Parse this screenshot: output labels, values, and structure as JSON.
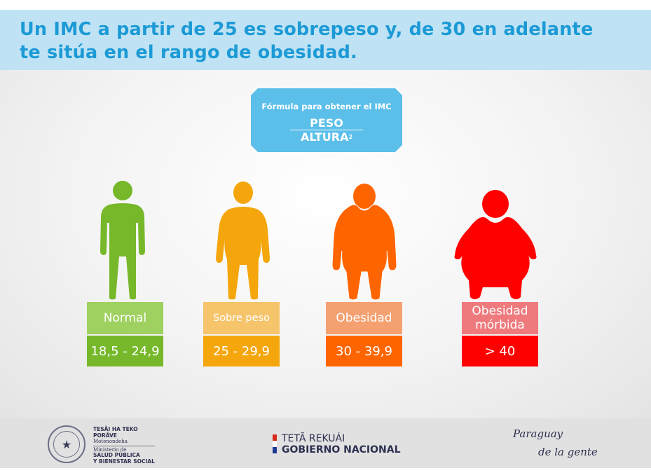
{
  "title": {
    "line1": "Un IMC a partir de 25 es sobrepeso y, de 30 en adelante",
    "line2": "te sitúa en el rango de obesidad."
  },
  "formula": {
    "caption": "Fórmula para obtener el IMC",
    "numerator": "PESO",
    "denominator": "ALTURA",
    "exponent": "2"
  },
  "categories": [
    {
      "label": "Normal",
      "range": "18,5 - 24,9",
      "color": "#76b82a",
      "light": "#9fd160"
    },
    {
      "label": "Sobre peso",
      "range": "25 - 29,9",
      "color": "#f4a60c",
      "light": "#f5c46b"
    },
    {
      "label": "Obesidad",
      "range": "30 - 39,9",
      "color": "#fe6500",
      "light": "#f4a070"
    },
    {
      "label": "Obesidad mórbida",
      "range": "> 40",
      "color": "#fe0000",
      "light": "#ee7a7d"
    }
  ],
  "footer": {
    "ministry": {
      "line1": "TESÃI HA TEKO",
      "line2": "PORÃVE",
      "line3": "Motenondeha",
      "line4": "Ministerio de",
      "line5": "SALUD PÚBLICA",
      "line6": "Y BIENESTAR SOCIAL",
      "seal_text": "REPÚBLICA DEL PARAGUAY"
    },
    "government": {
      "line1": "TETÃ REKUÁI",
      "line2": "GOBIERNO NACIONAL"
    },
    "slogan": {
      "line1": "Paraguay",
      "line2": "de la gente"
    }
  }
}
